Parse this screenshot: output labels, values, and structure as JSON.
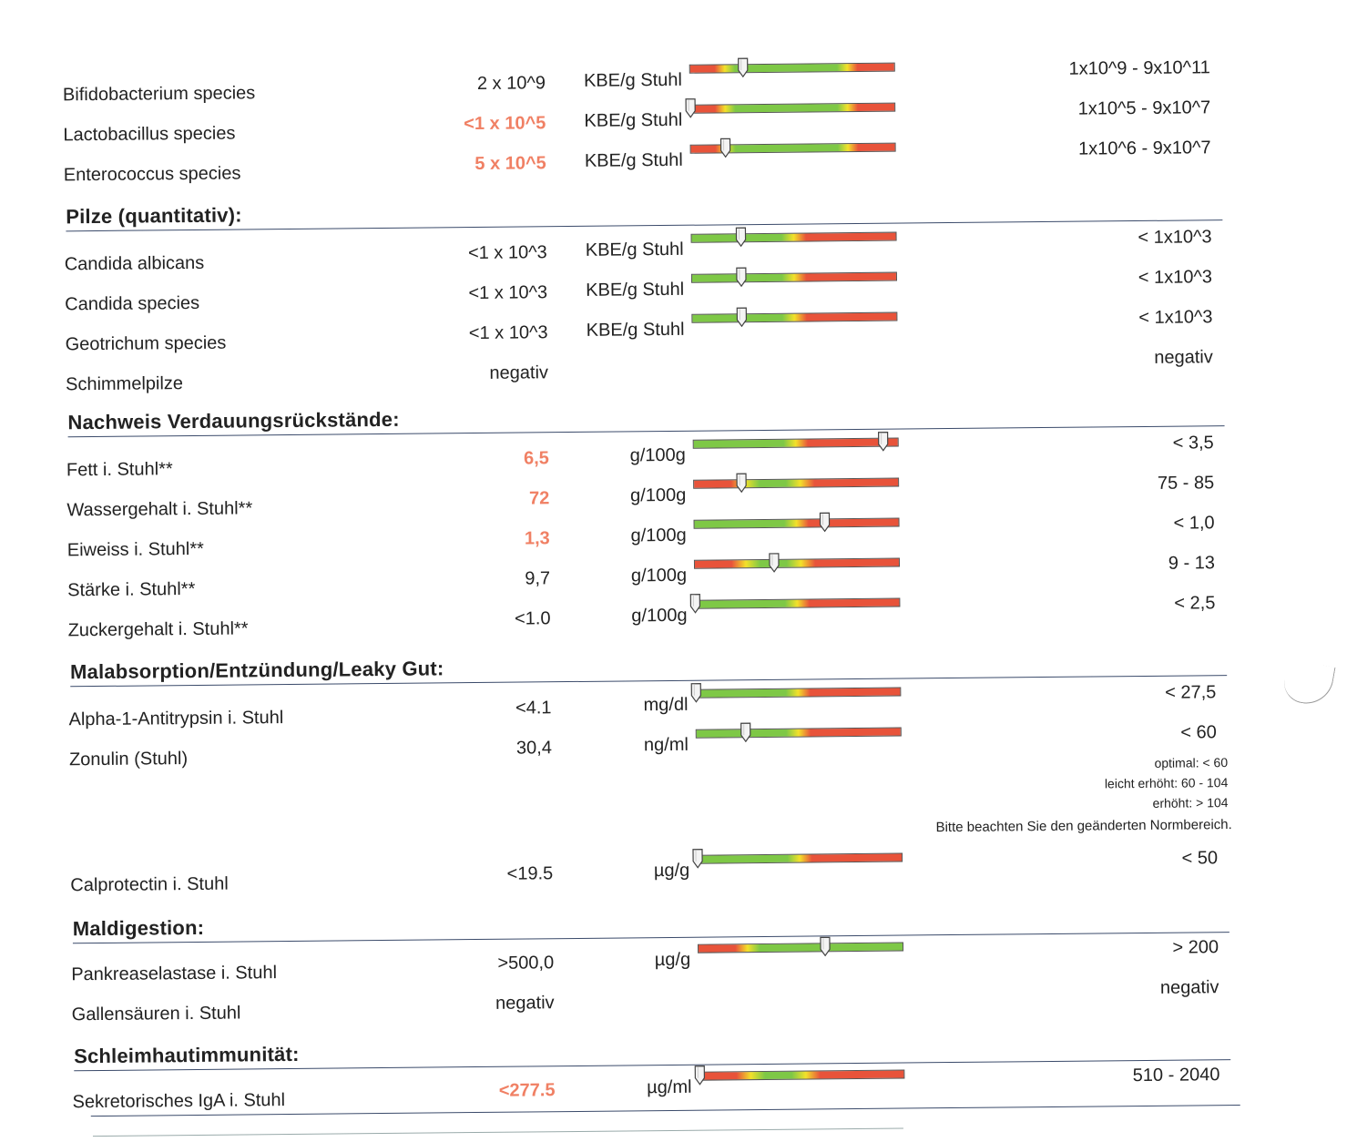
{
  "colors": {
    "low": "#e8533a",
    "mid": "#f3e12a",
    "high": "#7ec846",
    "flag": "#f08064"
  },
  "sections": {
    "pilze": "Pilze (quantitativ):",
    "verdauung": "Nachweis Verdauungsrückstände:",
    "malabsorption": "Malabsorption/Entzündung/Leaky Gut:",
    "maldigestion": "Maldigestion:",
    "schleimhaut": "Schleimhautimmunität:"
  },
  "rows": [
    {
      "name": "Bifidobacterium species",
      "value": "2 x 10^9",
      "flag": false,
      "unit": "KBE/g Stuhl",
      "ref": "1x10^9 - 9x10^11",
      "scale": "lgl",
      "level": 0.26
    },
    {
      "name": "Lactobacillus species",
      "value": "<1 x 10^5",
      "flag": true,
      "unit": "KBE/g Stuhl",
      "ref": "1x10^5 - 9x10^7",
      "scale": "lgl",
      "level": 0.0
    },
    {
      "name": "Enterococcus species",
      "value": "5 x 10^5",
      "flag": true,
      "unit": "KBE/g Stuhl",
      "ref": "1x10^6 - 9x10^7",
      "scale": "lgl",
      "level": 0.17
    },
    {
      "name": "Candida albicans",
      "value": "<1 x 10^3",
      "flag": false,
      "unit": "KBE/g Stuhl",
      "ref": "< 1x10^3",
      "scale": "gyr",
      "level": 0.24
    },
    {
      "name": "Candida species",
      "value": "<1 x 10^3",
      "flag": false,
      "unit": "KBE/g Stuhl",
      "ref": "< 1x10^3",
      "scale": "gyr",
      "level": 0.24
    },
    {
      "name": "Geotrichum species",
      "value": "<1 x 10^3",
      "flag": false,
      "unit": "KBE/g Stuhl",
      "ref": "< 1x10^3",
      "scale": "gyr",
      "level": 0.24
    },
    {
      "name": "Schimmelpilze",
      "value": "negativ",
      "flag": false,
      "unit": "",
      "ref": "negativ",
      "scale": "",
      "level": null
    },
    {
      "name": "Fett i. Stuhl**",
      "value": "6,5",
      "flag": true,
      "unit": "g/100g",
      "ref": "< 3,5",
      "scale": "gyr",
      "level": 0.93
    },
    {
      "name": "Wassergehalt i. Stuhl**",
      "value": "72",
      "flag": true,
      "unit": "g/100g",
      "ref": "75 - 85",
      "scale": "rygyr",
      "level": 0.23
    },
    {
      "name": "Eiweiss i. Stuhl**",
      "value": "1,3",
      "flag": true,
      "unit": "g/100g",
      "ref": "< 1,0",
      "scale": "gyr",
      "level": 0.64
    },
    {
      "name": "Stärke i. Stuhl**",
      "value": "9,7",
      "flag": false,
      "unit": "g/100g",
      "ref": "9 - 13",
      "scale": "rygyr",
      "level": 0.39
    },
    {
      "name": "Zuckergehalt i. Stuhl**",
      "value": "<1.0",
      "flag": false,
      "unit": "g/100g",
      "ref": "< 2,5",
      "scale": "gyr",
      "level": 0.0
    },
    {
      "name": "Alpha-1-Antitrypsin i. Stuhl",
      "value": "<4.1",
      "flag": false,
      "unit": "mg/dl",
      "ref": "< 27,5",
      "scale": "gyr",
      "level": 0.0
    },
    {
      "name": "Zonulin (Stuhl)",
      "value": "30,4",
      "flag": false,
      "unit": "ng/ml",
      "ref": "< 60",
      "scale": "gyr",
      "level": 0.24
    },
    {
      "name": "Calprotectin i. Stuhl",
      "value": "<19.5",
      "flag": false,
      "unit": "µg/g",
      "ref": "< 50",
      "scale": "gyr",
      "level": 0.0
    },
    {
      "name": "Pankreaselastase i. Stuhl",
      "value": ">500,0",
      "flag": false,
      "unit": "µg/g",
      "ref": "> 200",
      "scale": "ryg",
      "level": 0.62
    },
    {
      "name": "Gallensäuren i. Stuhl",
      "value": "negativ",
      "flag": false,
      "unit": "",
      "ref": "negativ",
      "scale": "",
      "level": null
    },
    {
      "name": "Sekretorisches IgA i. Stuhl",
      "value": "<277.5",
      "flag": true,
      "unit": "µg/ml",
      "ref": "510 - 2040",
      "scale": "rygyr",
      "level": 0.0
    }
  ],
  "zonulin_notes": [
    "optimal: < 60",
    "leicht erhöht: 60 - 104",
    "erhöht: > 104"
  ],
  "notice": "Bitte beachten Sie den geänderten Normbereich."
}
